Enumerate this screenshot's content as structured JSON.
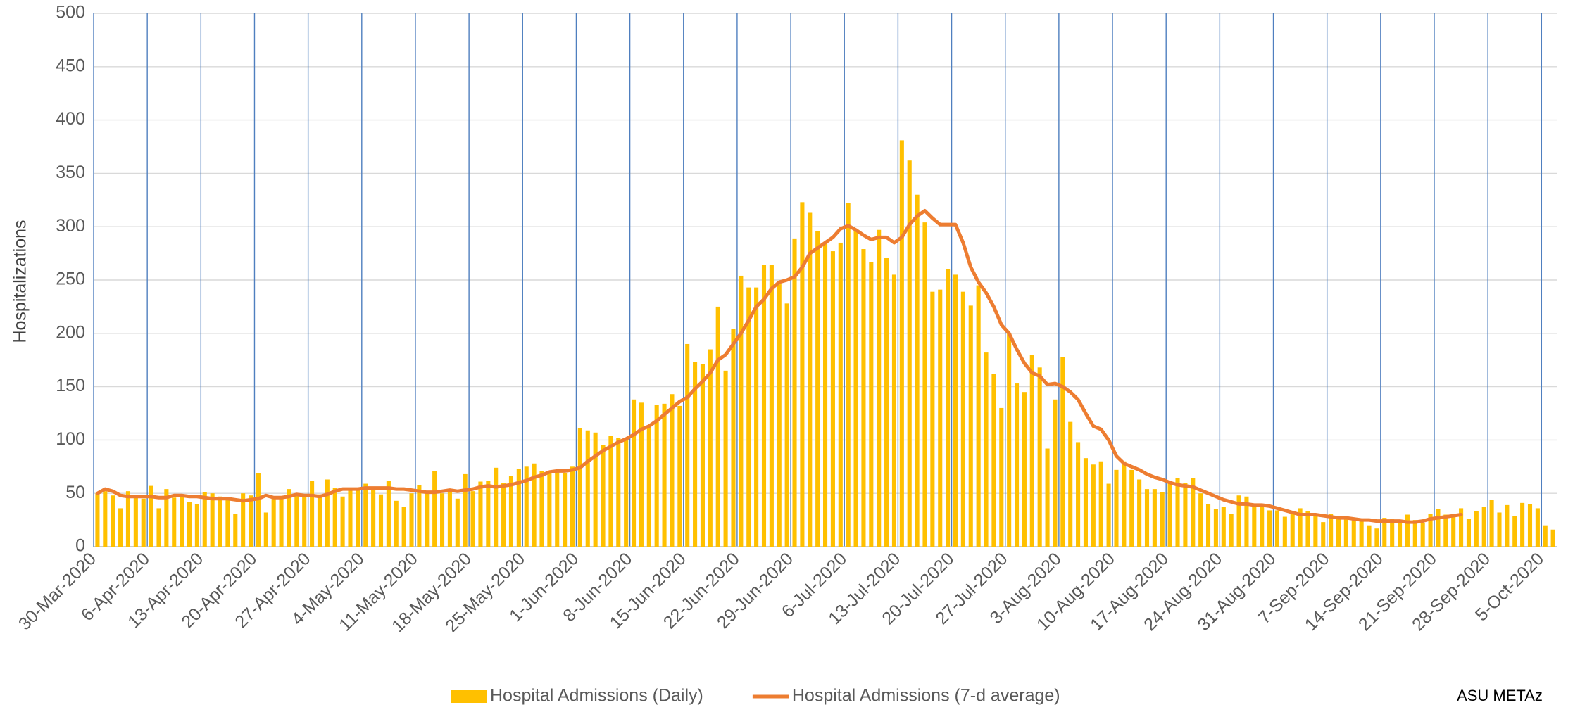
{
  "chart_data": {
    "type": "bar-line",
    "y_label": "Hospitalizations",
    "source": "ASU METAz",
    "legend": "bottom",
    "grid": true,
    "ylim": [
      0,
      500
    ],
    "yticks": [
      0,
      50,
      100,
      150,
      200,
      250,
      300,
      350,
      400,
      450,
      500
    ],
    "categories": [
      "30-Mar-2020",
      null,
      null,
      null,
      null,
      null,
      null,
      "6-Apr-2020",
      null,
      null,
      null,
      null,
      null,
      null,
      "13-Apr-2020",
      null,
      null,
      null,
      null,
      null,
      null,
      "20-Apr-2020",
      null,
      null,
      null,
      null,
      null,
      null,
      "27-Apr-2020",
      null,
      null,
      null,
      null,
      null,
      null,
      "4-May-2020",
      null,
      null,
      null,
      null,
      null,
      null,
      "11-May-2020",
      null,
      null,
      null,
      null,
      null,
      null,
      "18-May-2020",
      null,
      null,
      null,
      null,
      null,
      null,
      "25-May-2020",
      null,
      null,
      null,
      null,
      null,
      null,
      "1-Jun-2020",
      null,
      null,
      null,
      null,
      null,
      null,
      "8-Jun-2020",
      null,
      null,
      null,
      null,
      null,
      null,
      "15-Jun-2020",
      null,
      null,
      null,
      null,
      null,
      null,
      "22-Jun-2020",
      null,
      null,
      null,
      null,
      null,
      null,
      "29-Jun-2020",
      null,
      null,
      null,
      null,
      null,
      null,
      "6-Jul-2020",
      null,
      null,
      null,
      null,
      null,
      null,
      "13-Jul-2020",
      null,
      null,
      null,
      null,
      null,
      null,
      "20-Jul-2020",
      null,
      null,
      null,
      null,
      null,
      null,
      "27-Jul-2020",
      null,
      null,
      null,
      null,
      null,
      null,
      "3-Aug-2020",
      null,
      null,
      null,
      null,
      null,
      null,
      "10-Aug-2020",
      null,
      null,
      null,
      null,
      null,
      null,
      "17-Aug-2020",
      null,
      null,
      null,
      null,
      null,
      null,
      "24-Aug-2020",
      null,
      null,
      null,
      null,
      null,
      null,
      "31-Aug-2020",
      null,
      null,
      null,
      null,
      null,
      null,
      "7-Sep-2020",
      null,
      null,
      null,
      null,
      null,
      null,
      "14-Sep-2020",
      null,
      null,
      null,
      null,
      null,
      null,
      "21-Sep-2020",
      null,
      null,
      null,
      null,
      null,
      null,
      "28-Sep-2020",
      null,
      null,
      null,
      null,
      null,
      null,
      "5-Oct-2020",
      null
    ],
    "series": [
      {
        "name": "Hospital Admissions (Daily)",
        "kind": "bar",
        "color": "#FFC000",
        "values": [
          50,
          52,
          48,
          36,
          52,
          47,
          45,
          57,
          36,
          54,
          46,
          48,
          42,
          40,
          51,
          50,
          47,
          45,
          31,
          50,
          48,
          69,
          32,
          46,
          47,
          54,
          50,
          48,
          62,
          49,
          63,
          55,
          47,
          55,
          55,
          59,
          55,
          49,
          62,
          43,
          37,
          50,
          58,
          52,
          71,
          50,
          51,
          45,
          68,
          52,
          61,
          62,
          74,
          60,
          66,
          73,
          75,
          78,
          71,
          70,
          72,
          69,
          75,
          111,
          109,
          107,
          95,
          104,
          102,
          100,
          138,
          135,
          113,
          133,
          134,
          143,
          132,
          190,
          173,
          171,
          185,
          225,
          165,
          204,
          254,
          243,
          243,
          264,
          264,
          246,
          228,
          289,
          323,
          313,
          296,
          285,
          277,
          285,
          322,
          298,
          279,
          267,
          297,
          271,
          255,
          381,
          362,
          330,
          304,
          239,
          241,
          260,
          255,
          239,
          226,
          245,
          182,
          162,
          130,
          200,
          153,
          145,
          180,
          168,
          92,
          138,
          178,
          117,
          98,
          83,
          77,
          80,
          59,
          72,
          80,
          72,
          63,
          54,
          54,
          51,
          62,
          64,
          60,
          64,
          50,
          40,
          35,
          37,
          31,
          48,
          47,
          40,
          40,
          34,
          34,
          28,
          31,
          36,
          33,
          31,
          23,
          31,
          28,
          26,
          27,
          25,
          20,
          17,
          27,
          26,
          23,
          30,
          25,
          22,
          31,
          35,
          30,
          28,
          36,
          26,
          33,
          37,
          44,
          32,
          39,
          29,
          41,
          40,
          36,
          20,
          16
        ]
      },
      {
        "name": "Hospital Admissions (7-d average)",
        "kind": "line",
        "color": "#ED7D31",
        "values": [
          50,
          54,
          52,
          48,
          47,
          47,
          47,
          47,
          46,
          46,
          48,
          48,
          47,
          47,
          46,
          45,
          45,
          45,
          44,
          43,
          44,
          45,
          48,
          46,
          46,
          47,
          49,
          48,
          48,
          47,
          49,
          52,
          54,
          54,
          54,
          55,
          55,
          55,
          55,
          54,
          54,
          53,
          52,
          51,
          51,
          52,
          53,
          52,
          53,
          54,
          56,
          57,
          56,
          57,
          58,
          60,
          62,
          65,
          67,
          70,
          71,
          71,
          72,
          74,
          80,
          85,
          90,
          94,
          98,
          101,
          105,
          110,
          113,
          118,
          124,
          130,
          136,
          140,
          148,
          155,
          163,
          175,
          180,
          190,
          200,
          212,
          225,
          232,
          242,
          248,
          250,
          253,
          262,
          275,
          280,
          285,
          290,
          298,
          301,
          297,
          292,
          288,
          290,
          290,
          285,
          290,
          302,
          310,
          315,
          308,
          302,
          302,
          302,
          285,
          262,
          248,
          238,
          225,
          208,
          200,
          185,
          172,
          163,
          160,
          152,
          153,
          150,
          145,
          138,
          125,
          113,
          110,
          100,
          85,
          78,
          75,
          72,
          68,
          65,
          63,
          60,
          58,
          57,
          56,
          53,
          50,
          47,
          44,
          42,
          40,
          40,
          39,
          39,
          38,
          36,
          34,
          32,
          30,
          30,
          30,
          29,
          28,
          27,
          27,
          26,
          25,
          25,
          24,
          24,
          24,
          24,
          23,
          23,
          24,
          26,
          27,
          28,
          29,
          30,
          null,
          null,
          null,
          null,
          null,
          null,
          null,
          null,
          null,
          null,
          null,
          null
        ]
      }
    ]
  }
}
